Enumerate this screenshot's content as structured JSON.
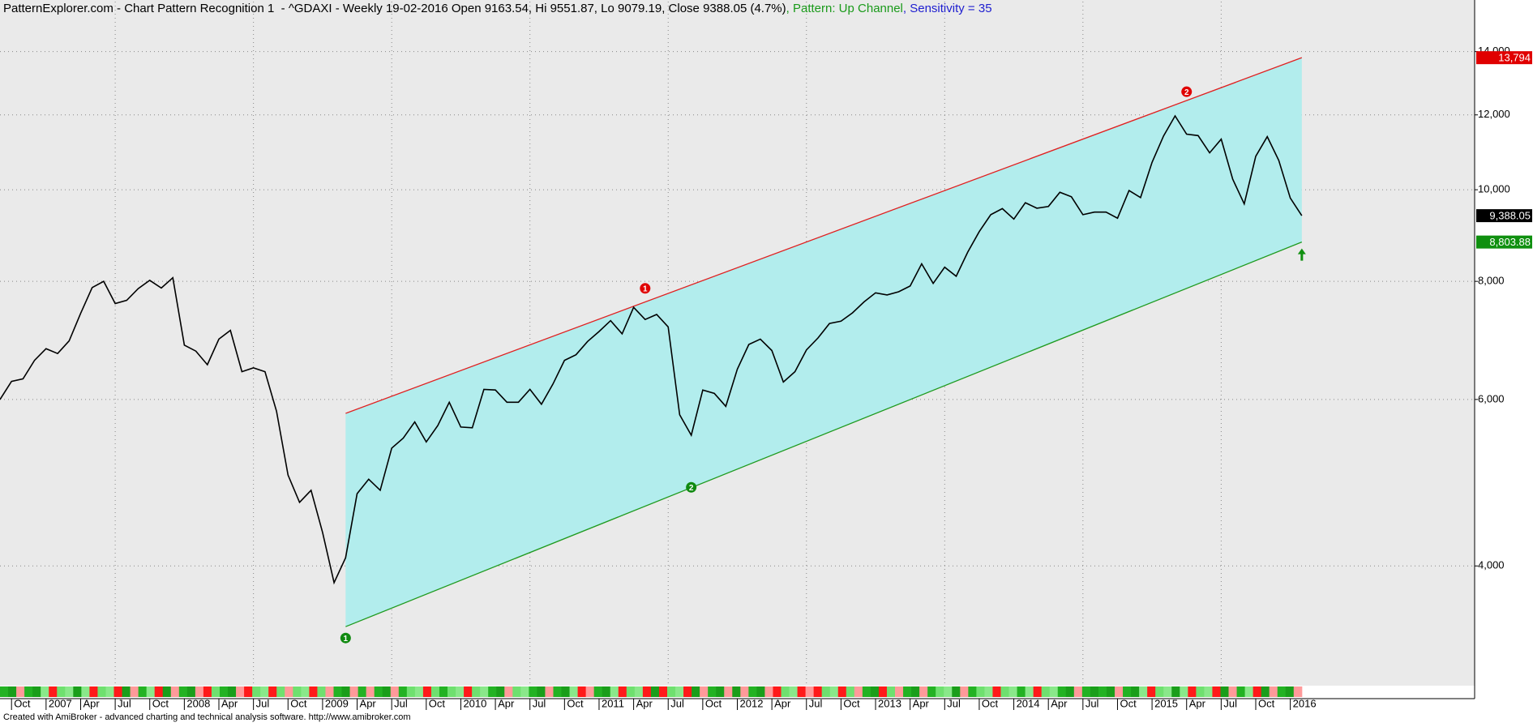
{
  "chart_data": {
    "type": "line",
    "title": "PatternExplorer.com - Chart Pattern Recognition 1  - ^GDAXI - Weekly 19-02-2016 Open 9163.54, Hi 9551.87, Lo 9079.19, Close 9388.05 (4.7%)",
    "pattern_label": ", Pattern: Up Channel",
    "sensitivity_label": ", Sensitivity = 35",
    "footer": "Created with AmiBroker - advanced charting and technical analysis software. http://www.amibroker.com",
    "log_scale": true,
    "grid": true,
    "xlim": [
      "2006-09",
      "2017-05"
    ],
    "ylim": [
      3000,
      15200
    ],
    "yticks": [
      {
        "value": 4000,
        "label": "4,000"
      },
      {
        "value": 6000,
        "label": "6,000"
      },
      {
        "value": 8000,
        "label": "8,000"
      },
      {
        "value": 10000,
        "label": "10,000"
      },
      {
        "value": 12000,
        "label": "12,000"
      },
      {
        "value": 14000,
        "label": "14,000"
      }
    ],
    "xticks": [
      {
        "value": "2006-10",
        "label": "Oct"
      },
      {
        "value": "2007-01",
        "label": "2007"
      },
      {
        "value": "2007-04",
        "label": "Apr"
      },
      {
        "value": "2007-07",
        "label": "Jul"
      },
      {
        "value": "2007-10",
        "label": "Oct"
      },
      {
        "value": "2008-01",
        "label": "2008"
      },
      {
        "value": "2008-04",
        "label": "Apr"
      },
      {
        "value": "2008-07",
        "label": "Jul"
      },
      {
        "value": "2008-10",
        "label": "Oct"
      },
      {
        "value": "2009-01",
        "label": "2009"
      },
      {
        "value": "2009-04",
        "label": "Apr"
      },
      {
        "value": "2009-07",
        "label": "Jul"
      },
      {
        "value": "2009-10",
        "label": "Oct"
      },
      {
        "value": "2010-01",
        "label": "2010"
      },
      {
        "value": "2010-04",
        "label": "Apr"
      },
      {
        "value": "2010-07",
        "label": "Jul"
      },
      {
        "value": "2010-10",
        "label": "Oct"
      },
      {
        "value": "2011-01",
        "label": "2011"
      },
      {
        "value": "2011-04",
        "label": "Apr"
      },
      {
        "value": "2011-07",
        "label": "Jul"
      },
      {
        "value": "2011-10",
        "label": "Oct"
      },
      {
        "value": "2012-01",
        "label": "2012"
      },
      {
        "value": "2012-04",
        "label": "Apr"
      },
      {
        "value": "2012-07",
        "label": "Jul"
      },
      {
        "value": "2012-10",
        "label": "Oct"
      },
      {
        "value": "2013-01",
        "label": "2013"
      },
      {
        "value": "2013-04",
        "label": "Apr"
      },
      {
        "value": "2013-07",
        "label": "Jul"
      },
      {
        "value": "2013-10",
        "label": "Oct"
      },
      {
        "value": "2014-01",
        "label": "2014"
      },
      {
        "value": "2014-04",
        "label": "Apr"
      },
      {
        "value": "2014-07",
        "label": "Jul"
      },
      {
        "value": "2014-10",
        "label": "Oct"
      },
      {
        "value": "2015-01",
        "label": "2015"
      },
      {
        "value": "2015-04",
        "label": "Apr"
      },
      {
        "value": "2015-07",
        "label": "Jul"
      },
      {
        "value": "2015-10",
        "label": "Oct"
      },
      {
        "value": "2016-01",
        "label": "2016"
      }
    ],
    "x": [
      "2006-09",
      "2006-10",
      "2006-11",
      "2006-12",
      "2007-01",
      "2007-02",
      "2007-03",
      "2007-04",
      "2007-05",
      "2007-06",
      "2007-07",
      "2007-08",
      "2007-09",
      "2007-10",
      "2007-11",
      "2007-12",
      "2008-01",
      "2008-02",
      "2008-03",
      "2008-04",
      "2008-05",
      "2008-06",
      "2008-07",
      "2008-08",
      "2008-09",
      "2008-10",
      "2008-11",
      "2008-12",
      "2009-01",
      "2009-02",
      "2009-03",
      "2009-04",
      "2009-05",
      "2009-06",
      "2009-07",
      "2009-08",
      "2009-09",
      "2009-10",
      "2009-11",
      "2009-12",
      "2010-01",
      "2010-02",
      "2010-03",
      "2010-04",
      "2010-05",
      "2010-06",
      "2010-07",
      "2010-08",
      "2010-09",
      "2010-10",
      "2010-11",
      "2010-12",
      "2011-01",
      "2011-02",
      "2011-03",
      "2011-04",
      "2011-05",
      "2011-06",
      "2011-07",
      "2011-08",
      "2011-09",
      "2011-10",
      "2011-11",
      "2011-12",
      "2012-01",
      "2012-02",
      "2012-03",
      "2012-04",
      "2012-05",
      "2012-06",
      "2012-07",
      "2012-08",
      "2012-09",
      "2012-10",
      "2012-11",
      "2012-12",
      "2013-01",
      "2013-02",
      "2013-03",
      "2013-04",
      "2013-05",
      "2013-06",
      "2013-07",
      "2013-08",
      "2013-09",
      "2013-10",
      "2013-11",
      "2013-12",
      "2014-01",
      "2014-02",
      "2014-03",
      "2014-04",
      "2014-05",
      "2014-06",
      "2014-07",
      "2014-08",
      "2014-09",
      "2014-10",
      "2014-11",
      "2014-12",
      "2015-01",
      "2015-02",
      "2015-03",
      "2015-04",
      "2015-05",
      "2015-06",
      "2015-07",
      "2015-08",
      "2015-09",
      "2015-10",
      "2015-11",
      "2015-12",
      "2016-01",
      "2016-02"
    ],
    "series": [
      {
        "color": "#000000",
        "values": [
          6000,
          6270,
          6310,
          6600,
          6790,
          6710,
          6920,
          7400,
          7880,
          8000,
          7580,
          7640,
          7860,
          8020,
          7870,
          8070,
          6850,
          6750,
          6530,
          6950,
          7100,
          6420,
          6480,
          6420,
          5830,
          4990,
          4670,
          4810,
          4340,
          3840,
          4080,
          4770,
          4940,
          4810,
          5330,
          5460,
          5680,
          5410,
          5630,
          5960,
          5610,
          5600,
          6150,
          6140,
          5960,
          5960,
          6150,
          5930,
          6230,
          6600,
          6690,
          6910,
          7080,
          7270,
          7040,
          7510,
          7290,
          7380,
          7160,
          5780,
          5500,
          6140,
          6090,
          5900,
          6460,
          6860,
          6950,
          6760,
          6260,
          6420,
          6770,
          6970,
          7220,
          7260,
          7410,
          7610,
          7780,
          7740,
          7800,
          7910,
          8350,
          7960,
          8280,
          8100,
          8590,
          9030,
          9410,
          9550,
          9310,
          9690,
          9560,
          9600,
          9940,
          9830,
          9410,
          9470,
          9470,
          9330,
          9980,
          9810,
          10690,
          11400,
          11970,
          11450,
          11410,
          10940,
          11310,
          10260,
          9660,
          10850,
          11380,
          10740,
          9800,
          9388.05
        ]
      }
    ],
    "channel": {
      "fill": "#b2eded",
      "upper": {
        "color": "#e02020",
        "x": [
          "2009-03",
          "2016-02"
        ],
        "values": [
          5800,
          13794
        ]
      },
      "lower": {
        "color": "#1f9a1f",
        "x": [
          "2009-03",
          "2016-02"
        ],
        "values": [
          3450,
          8803.88
        ]
      }
    },
    "pivots": [
      {
        "label": "1",
        "side": "upper",
        "color": "#e00000",
        "x": "2011-05",
        "value": 7650
      },
      {
        "label": "2",
        "side": "upper",
        "color": "#e00000",
        "x": "2015-04",
        "value": 12350
      },
      {
        "label": "1",
        "side": "lower",
        "color": "#108a10",
        "x": "2009-03",
        "value": 3450
      },
      {
        "label": "2",
        "side": "lower",
        "color": "#108a10",
        "x": "2011-09",
        "value": 4980
      }
    ],
    "price_labels": [
      {
        "value": 13794,
        "label": "13,794",
        "color": "#e00000"
      },
      {
        "value": 9388.05,
        "label": "9,388.05",
        "color": "#000000"
      },
      {
        "value": 8803.88,
        "label": "8,803.88",
        "color": "#109010"
      }
    ]
  }
}
